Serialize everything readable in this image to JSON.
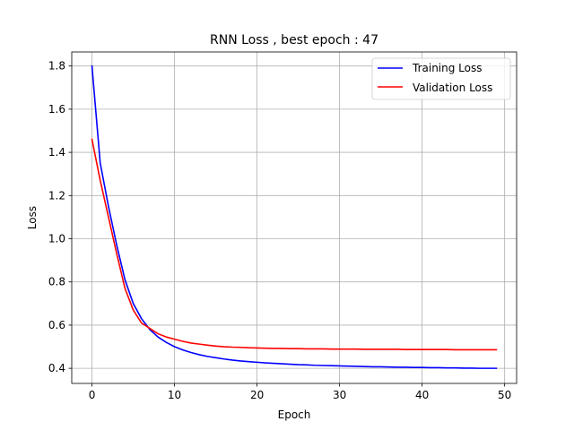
{
  "chart_data": {
    "type": "line",
    "title": "RNN Loss , best epoch : 47",
    "xlabel": "Epoch",
    "ylabel": "Loss",
    "xlim": [
      -2.45,
      51.45
    ],
    "ylim": [
      0.33,
      1.865
    ],
    "xticks": [
      0,
      10,
      20,
      30,
      40,
      50
    ],
    "yticks": [
      0.4,
      0.6,
      0.8,
      1.0,
      1.2,
      1.4,
      1.6,
      1.8
    ],
    "xtick_labels": [
      "0",
      "10",
      "20",
      "30",
      "40",
      "50"
    ],
    "ytick_labels": [
      "0.4",
      "0.6",
      "0.8",
      "1.0",
      "1.2",
      "1.4",
      "1.6",
      "1.8"
    ],
    "grid": true,
    "legend_position": "upper-right",
    "series": [
      {
        "name": "Training Loss",
        "color": "#0000ff",
        "x": [
          0,
          1,
          2,
          3,
          4,
          5,
          6,
          7,
          8,
          9,
          10,
          11,
          12,
          13,
          14,
          15,
          16,
          17,
          18,
          19,
          20,
          21,
          22,
          23,
          24,
          25,
          26,
          27,
          28,
          29,
          30,
          31,
          32,
          33,
          34,
          35,
          36,
          37,
          38,
          39,
          40,
          41,
          42,
          43,
          44,
          45,
          46,
          47,
          48,
          49
        ],
        "y": [
          1.8,
          1.35,
          1.15,
          0.97,
          0.81,
          0.7,
          0.63,
          0.58,
          0.545,
          0.52,
          0.5,
          0.485,
          0.473,
          0.463,
          0.455,
          0.449,
          0.443,
          0.438,
          0.434,
          0.431,
          0.428,
          0.425,
          0.423,
          0.421,
          0.419,
          0.417,
          0.416,
          0.414,
          0.413,
          0.412,
          0.411,
          0.41,
          0.409,
          0.408,
          0.407,
          0.407,
          0.406,
          0.405,
          0.405,
          0.404,
          0.404,
          0.403,
          0.403,
          0.402,
          0.402,
          0.401,
          0.401,
          0.4,
          0.4,
          0.4
        ]
      },
      {
        "name": "Validation Loss",
        "color": "#ff0000",
        "x": [
          0,
          1,
          2,
          3,
          4,
          5,
          6,
          7,
          8,
          9,
          10,
          11,
          12,
          13,
          14,
          15,
          16,
          17,
          18,
          19,
          20,
          21,
          22,
          23,
          24,
          25,
          26,
          27,
          28,
          29,
          30,
          31,
          32,
          33,
          34,
          35,
          36,
          37,
          38,
          39,
          40,
          41,
          42,
          43,
          44,
          45,
          46,
          47,
          48,
          49
        ],
        "y": [
          1.46,
          1.27,
          1.1,
          0.93,
          0.77,
          0.67,
          0.61,
          0.585,
          0.56,
          0.545,
          0.535,
          0.525,
          0.517,
          0.512,
          0.507,
          0.503,
          0.5,
          0.498,
          0.497,
          0.495,
          0.494,
          0.493,
          0.492,
          0.492,
          0.491,
          0.491,
          0.49,
          0.49,
          0.49,
          0.489,
          0.489,
          0.489,
          0.489,
          0.488,
          0.488,
          0.488,
          0.488,
          0.488,
          0.487,
          0.487,
          0.487,
          0.487,
          0.487,
          0.487,
          0.486,
          0.486,
          0.486,
          0.486,
          0.486,
          0.486
        ]
      }
    ]
  }
}
